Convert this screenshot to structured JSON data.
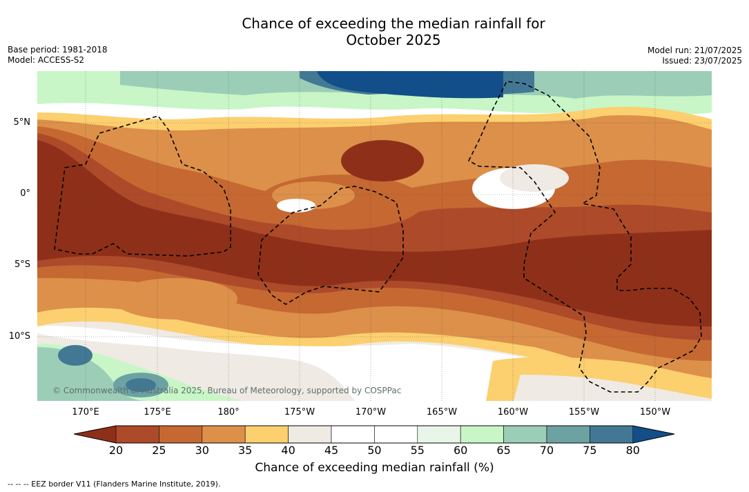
{
  "title": {
    "line1": "Chance of exceeding the median rainfall for",
    "line2": "October 2025"
  },
  "meta": {
    "base_period": "Base period: 1981-2018",
    "model": "Model: ACCESS-S2",
    "model_run": "Model run: 21/07/2025",
    "issued": "Issued: 23/07/2025"
  },
  "map": {
    "latitude_labels": [
      "5°N",
      "0°",
      "5°S",
      "10°S"
    ],
    "longitude_labels": [
      "170°E",
      "175°E",
      "180°",
      "175°W",
      "170°W",
      "165°W",
      "160°W",
      "155°W",
      "150°W"
    ],
    "copyright": "© Commonwealth of Australia 2025, Bureau of Meteorology, supported by COSPPac",
    "colors": {
      "lt20": "#8e3019",
      "20-25": "#ac4a2a",
      "25-30": "#c56832",
      "30-35": "#dc904a",
      "35-40": "#fccf6f",
      "40-45": "#efeae4",
      "45-55": "#ffffff",
      "55-60": "#e8f5e9",
      "60-65": "#c8f6c7",
      "65-70": "#9ccdb7",
      "70-75": "#6da2a3",
      "75-80": "#427893",
      "gt80": "#124e89"
    }
  },
  "colorbar": {
    "title": "Chance of exceeding median rainfall (%)",
    "ticks": [
      "20",
      "25",
      "30",
      "35",
      "40",
      "45",
      "50",
      "55",
      "60",
      "65",
      "70",
      "75",
      "80"
    ],
    "segment_colors": [
      "#ac4a2a",
      "#c56832",
      "#dc904a",
      "#fccf6f",
      "#efeae4",
      "#ffffff",
      "#ffffff",
      "#e8f5e9",
      "#c8f6c7",
      "#9ccdb7",
      "#6da2a3",
      "#427893"
    ],
    "under_color": "#8e3019",
    "over_color": "#124e89"
  },
  "footnote": "--  --  -- EEZ border V11 (Flanders Marine Institute, 2019)."
}
